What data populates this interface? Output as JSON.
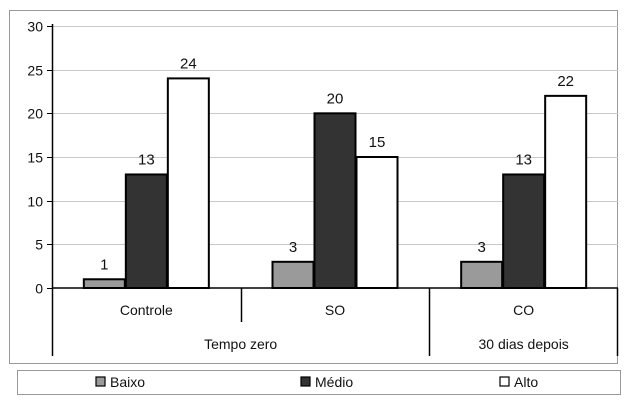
{
  "chart_data": {
    "type": "bar",
    "categories": [
      "Controle",
      "SO",
      "CO"
    ],
    "groups": [
      {
        "label": "Tempo zero",
        "categories": [
          "Controle",
          "SO"
        ]
      },
      {
        "label": "30 dias depois",
        "categories": [
          "CO"
        ]
      }
    ],
    "series": [
      {
        "name": "Baixo",
        "values": [
          1,
          3,
          3
        ],
        "color": "#9a9a9a"
      },
      {
        "name": "Médio",
        "values": [
          13,
          20,
          13
        ],
        "color": "#333333"
      },
      {
        "name": "Alto",
        "values": [
          24,
          15,
          22
        ],
        "color": "#ffffff"
      }
    ],
    "ylim": [
      0,
      30
    ],
    "yticks": [
      0,
      5,
      10,
      15,
      20,
      25,
      30
    ],
    "grid": true,
    "legend_position": "bottom",
    "show_data_labels": true
  }
}
